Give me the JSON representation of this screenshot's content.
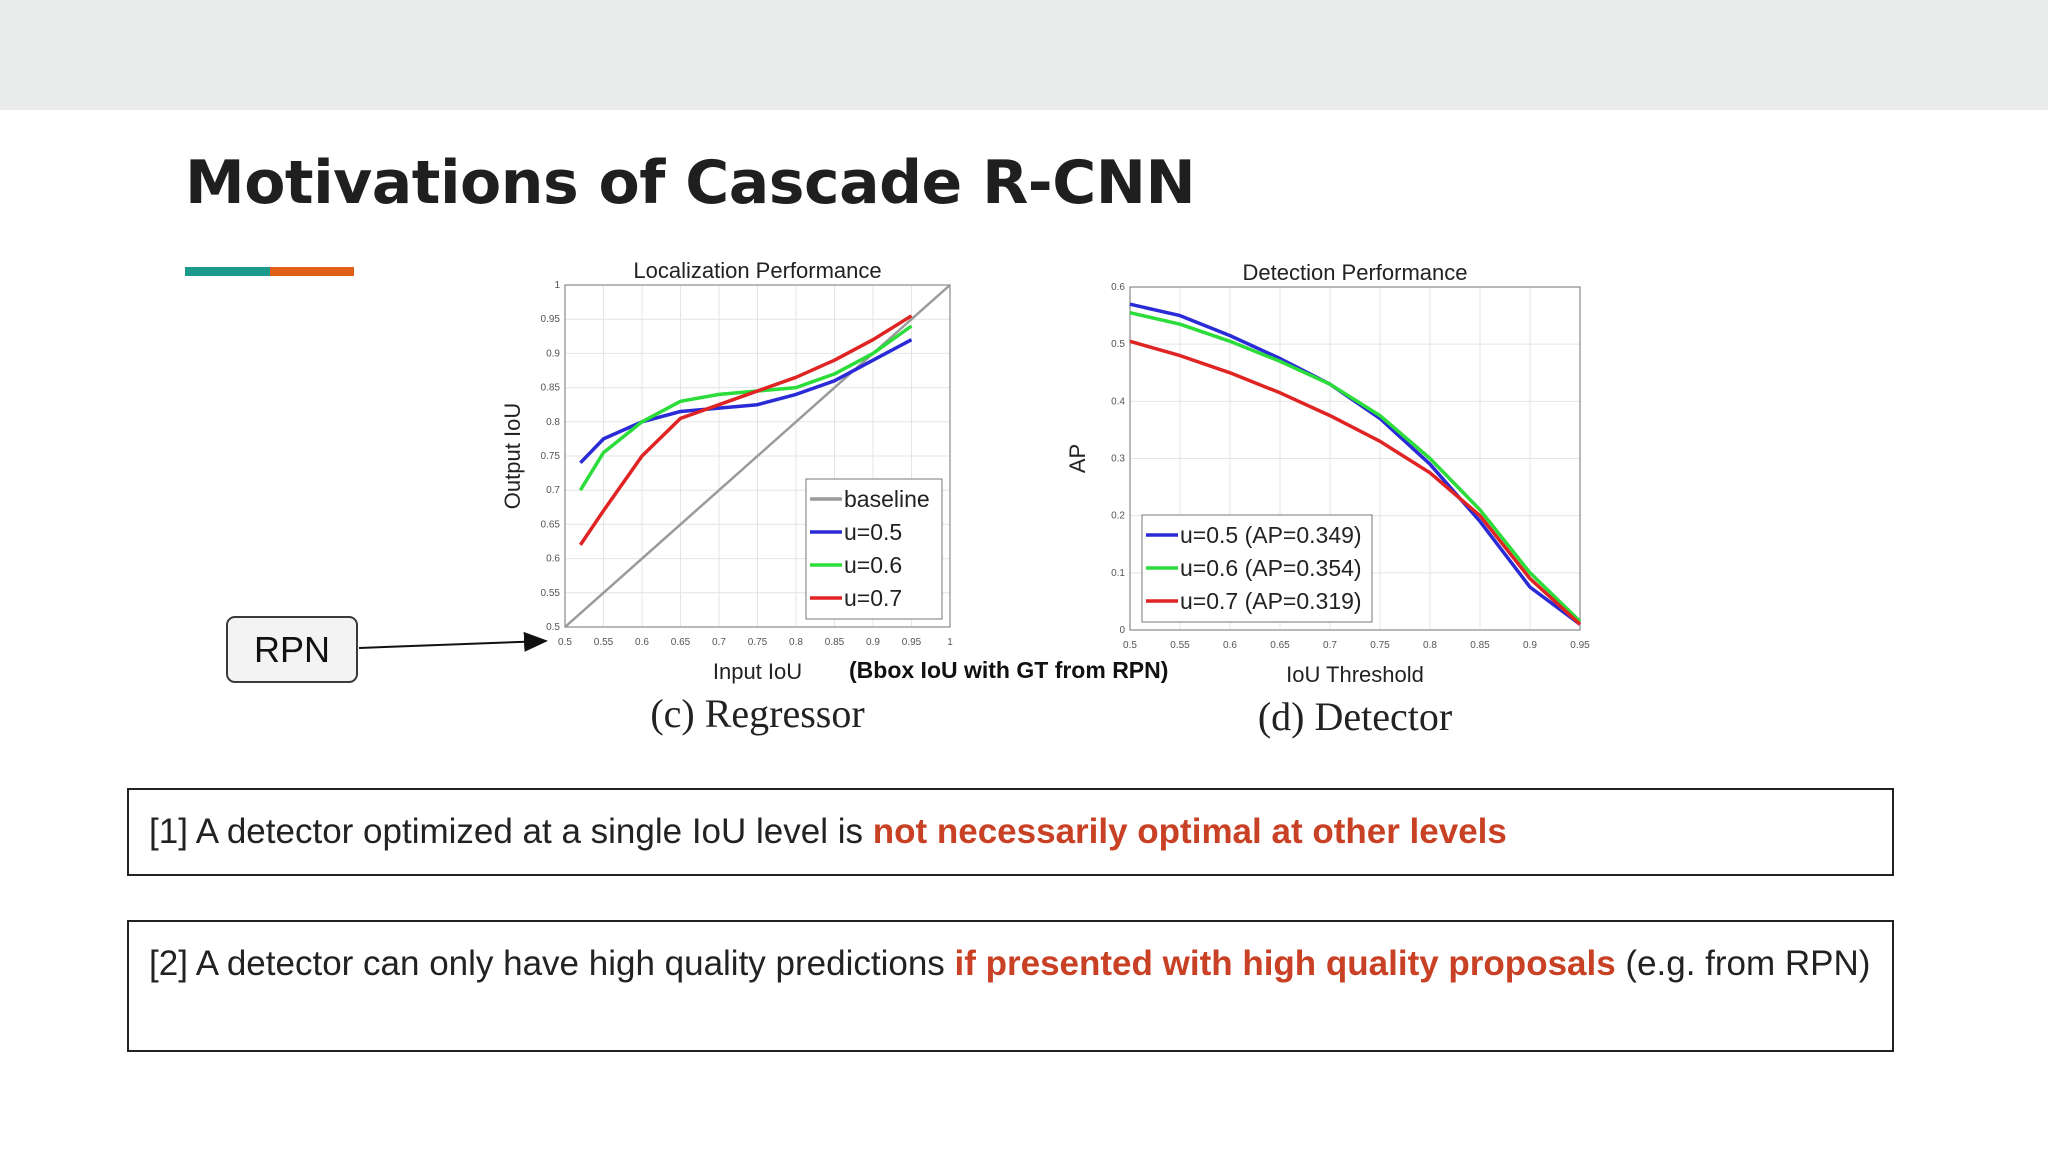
{
  "slide": {
    "title": "Motivations of Cascade R-CNN",
    "accent_colors": [
      "#1c9a8c",
      "#e0601a"
    ],
    "rpn_label": "RPN",
    "arrow_note": "(Bbox IoU with GT from RPN)",
    "point1": {
      "prefix": "[1] A detector optimized at a single IoU level is ",
      "highlight": "not necessarily optimal at other levels"
    },
    "point2": {
      "prefix": "[2] A detector can only have high quality predictions ",
      "highlight": "if presented with high quality proposals",
      "suffix": " (e.g. from RPN)"
    },
    "highlight_color": "#c94125"
  },
  "chart_data": [
    {
      "type": "line",
      "title": "Localization Performance",
      "caption": "(c) Regressor",
      "xlabel": "Input IoU",
      "ylabel": "Output IoU",
      "xlim": [
        0.5,
        1
      ],
      "ylim": [
        0.5,
        1
      ],
      "xticks": [
        "0.5",
        "0.55",
        "0.6",
        "0.65",
        "0.7",
        "0.75",
        "0.8",
        "0.85",
        "0.9",
        "0.95",
        "1"
      ],
      "yticks": [
        "0.5",
        "0.55",
        "0.6",
        "0.65",
        "0.7",
        "0.75",
        "0.8",
        "0.85",
        "0.9",
        "0.95",
        "1"
      ],
      "grid": true,
      "legend_position": "bottom-right",
      "series": [
        {
          "name": "baseline",
          "color": "#9a9a9a",
          "x": [
            0.5,
            1.0
          ],
          "y": [
            0.5,
            1.0
          ]
        },
        {
          "name": "u=0.5",
          "color": "#2a2ad6",
          "x": [
            0.52,
            0.55,
            0.6,
            0.65,
            0.7,
            0.75,
            0.8,
            0.85,
            0.9,
            0.95
          ],
          "y": [
            0.74,
            0.775,
            0.8,
            0.815,
            0.82,
            0.825,
            0.84,
            0.86,
            0.89,
            0.92
          ]
        },
        {
          "name": "u=0.6",
          "color": "#2bdc3a",
          "x": [
            0.52,
            0.55,
            0.6,
            0.65,
            0.7,
            0.75,
            0.8,
            0.85,
            0.9,
            0.95
          ],
          "y": [
            0.7,
            0.755,
            0.8,
            0.83,
            0.84,
            0.845,
            0.85,
            0.87,
            0.9,
            0.94
          ]
        },
        {
          "name": "u=0.7",
          "color": "#e02323",
          "x": [
            0.52,
            0.55,
            0.6,
            0.65,
            0.7,
            0.75,
            0.8,
            0.85,
            0.9,
            0.95
          ],
          "y": [
            0.62,
            0.67,
            0.75,
            0.805,
            0.825,
            0.845,
            0.865,
            0.89,
            0.92,
            0.955
          ]
        }
      ]
    },
    {
      "type": "line",
      "title": "Detection Performance",
      "caption": "(d) Detector",
      "xlabel": "IoU Threshold",
      "ylabel": "AP",
      "xlim": [
        0.5,
        0.95
      ],
      "ylim": [
        0,
        0.6
      ],
      "xticks": [
        "0.5",
        "0.55",
        "0.6",
        "0.65",
        "0.7",
        "0.75",
        "0.8",
        "0.85",
        "0.9",
        "0.95"
      ],
      "yticks": [
        "0",
        "0.1",
        "0.2",
        "0.3",
        "0.4",
        "0.5",
        "0.6"
      ],
      "grid": true,
      "legend_position": "bottom-left",
      "series": [
        {
          "name": "u=0.5 (AP=0.349)",
          "color": "#2a2ad6",
          "x": [
            0.5,
            0.55,
            0.6,
            0.65,
            0.7,
            0.75,
            0.8,
            0.85,
            0.9,
            0.95
          ],
          "y": [
            0.57,
            0.55,
            0.515,
            0.475,
            0.43,
            0.37,
            0.29,
            0.19,
            0.075,
            0.01
          ]
        },
        {
          "name": "u=0.6 (AP=0.354)",
          "color": "#2bdc3a",
          "x": [
            0.5,
            0.55,
            0.6,
            0.65,
            0.7,
            0.75,
            0.8,
            0.85,
            0.9,
            0.95
          ],
          "y": [
            0.555,
            0.535,
            0.505,
            0.47,
            0.43,
            0.375,
            0.3,
            0.21,
            0.1,
            0.015
          ]
        },
        {
          "name": "u=0.7 (AP=0.319)",
          "color": "#e02323",
          "x": [
            0.5,
            0.55,
            0.6,
            0.65,
            0.7,
            0.75,
            0.8,
            0.85,
            0.9,
            0.95
          ],
          "y": [
            0.505,
            0.48,
            0.45,
            0.415,
            0.375,
            0.33,
            0.275,
            0.2,
            0.09,
            0.01
          ]
        }
      ]
    }
  ]
}
